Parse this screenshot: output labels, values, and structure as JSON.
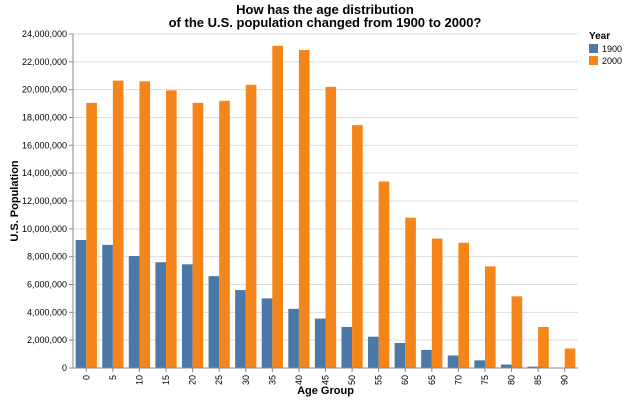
{
  "chart_data": {
    "type": "bar",
    "title": [
      "How has the age distribution",
      "of the U.S. population changed from 1900 to 2000?"
    ],
    "xlabel": "Age Group",
    "ylabel": "U.S. Population",
    "categories": [
      "0",
      "5",
      "10",
      "15",
      "20",
      "25",
      "30",
      "35",
      "40",
      "45",
      "50",
      "55",
      "60",
      "65",
      "70",
      "75",
      "80",
      "85",
      "90"
    ],
    "ylim": [
      0,
      24000000
    ],
    "yticks": [
      {
        "value": 0,
        "label": "0"
      },
      {
        "value": 2000000,
        "label": "2,000,000"
      },
      {
        "value": 4000000,
        "label": "4,000,000"
      },
      {
        "value": 6000000,
        "label": "6,000,000"
      },
      {
        "value": 8000000,
        "label": "8,000,000"
      },
      {
        "value": 10000000,
        "label": "10,000,000"
      },
      {
        "value": 12000000,
        "label": "12,000,000"
      },
      {
        "value": 14000000,
        "label": "14,000,000"
      },
      {
        "value": 16000000,
        "label": "16,000,000"
      },
      {
        "value": 18000000,
        "label": "18,000,000"
      },
      {
        "value": 20000000,
        "label": "20,000,000"
      },
      {
        "value": 22000000,
        "label": "22,000,000"
      },
      {
        "value": 24000000,
        "label": "24,000,000"
      }
    ],
    "grid": true,
    "legend": {
      "title": "Year",
      "placement": "top-right"
    },
    "series": [
      {
        "name": "1900",
        "color": "#4c78a8",
        "values": [
          9200000,
          8850000,
          8050000,
          7600000,
          7450000,
          6600000,
          5600000,
          5000000,
          4250000,
          3550000,
          2950000,
          2250000,
          1800000,
          1300000,
          900000,
          550000,
          250000,
          100000,
          30000
        ]
      },
      {
        "name": "2000",
        "color": "#f58518",
        "values": [
          19050000,
          20650000,
          20600000,
          19950000,
          19050000,
          19200000,
          20350000,
          23150000,
          22850000,
          20200000,
          17450000,
          13400000,
          10800000,
          9300000,
          9000000,
          7300000,
          5150000,
          2950000,
          1400000
        ]
      }
    ]
  }
}
